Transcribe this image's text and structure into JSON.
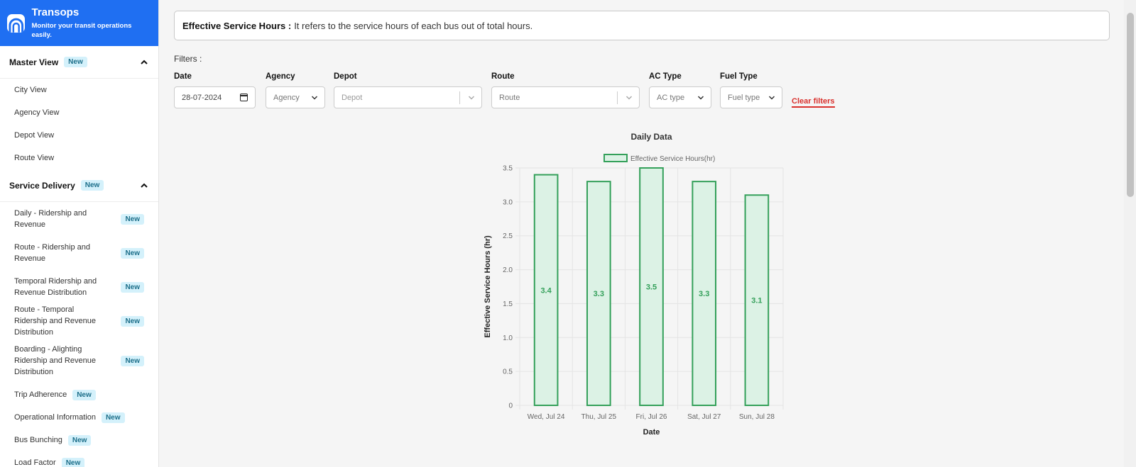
{
  "brand": {
    "title": "Transops",
    "subtitle": "Monitor your transit operations easily."
  },
  "sidebar": {
    "master": {
      "title": "Master View",
      "badge": "New",
      "items": [
        "City View",
        "Agency View",
        "Depot View",
        "Route View"
      ]
    },
    "service": {
      "title": "Service Delivery",
      "badge": "New",
      "items": [
        {
          "label": "Daily - Ridership and Revenue",
          "badge": "New"
        },
        {
          "label": "Route - Ridership and Revenue",
          "badge": "New"
        },
        {
          "label": "Temporal Ridership and Revenue Distribution",
          "badge": "New"
        },
        {
          "label": "Route - Temporal Ridership and Revenue Distribution",
          "badge": "New"
        },
        {
          "label": "Boarding - Alighting Ridership and Revenue Distribution",
          "badge": "New"
        },
        {
          "label": "Trip Adherence",
          "badge": "New"
        },
        {
          "label": "Operational Information",
          "badge": "New"
        },
        {
          "label": "Bus Bunching",
          "badge": "New"
        },
        {
          "label": "Load Factor",
          "badge": "New"
        }
      ]
    }
  },
  "info": {
    "term": "Effective Service Hours :",
    "text": "It refers to the service hours of each bus out of total hours."
  },
  "filters": {
    "title": "Filters :",
    "date": {
      "label": "Date",
      "value": "28-07-2024"
    },
    "agency": {
      "label": "Agency",
      "placeholder": "Agency"
    },
    "depot": {
      "label": "Depot",
      "placeholder": "Depot"
    },
    "route": {
      "label": "Route",
      "placeholder": "Route"
    },
    "ac": {
      "label": "AC Type",
      "placeholder": "AC type"
    },
    "fuel": {
      "label": "Fuel Type",
      "placeholder": "Fuel type"
    },
    "clear": "Clear filters"
  },
  "colors": {
    "accent": "#1f6ff2",
    "bar_fill": "#dcf2e5",
    "bar_stroke": "#34a05a",
    "clear": "#d9302c"
  },
  "chart_data": {
    "type": "bar",
    "title": "Daily Data",
    "categories": [
      "Wed, Jul 24",
      "Thu, Jul 25",
      "Fri, Jul 26",
      "Sat, Jul 27",
      "Sun, Jul 28"
    ],
    "series": [
      {
        "name": "Effective Service Hours(hr)",
        "values": [
          3.4,
          3.3,
          3.5,
          3.3,
          3.1
        ]
      }
    ],
    "data_labels": [
      "3.4",
      "3.3",
      "3.5",
      "3.3",
      "3.1"
    ],
    "xlabel": "Date",
    "ylabel": "Effective Service Hours (hr)",
    "ylim": [
      0,
      3.5
    ],
    "yticks": [
      "0",
      "0.5",
      "1.0",
      "1.5",
      "2.0",
      "2.5",
      "3.0",
      "3.5"
    ],
    "grid": true,
    "legend": "top"
  }
}
